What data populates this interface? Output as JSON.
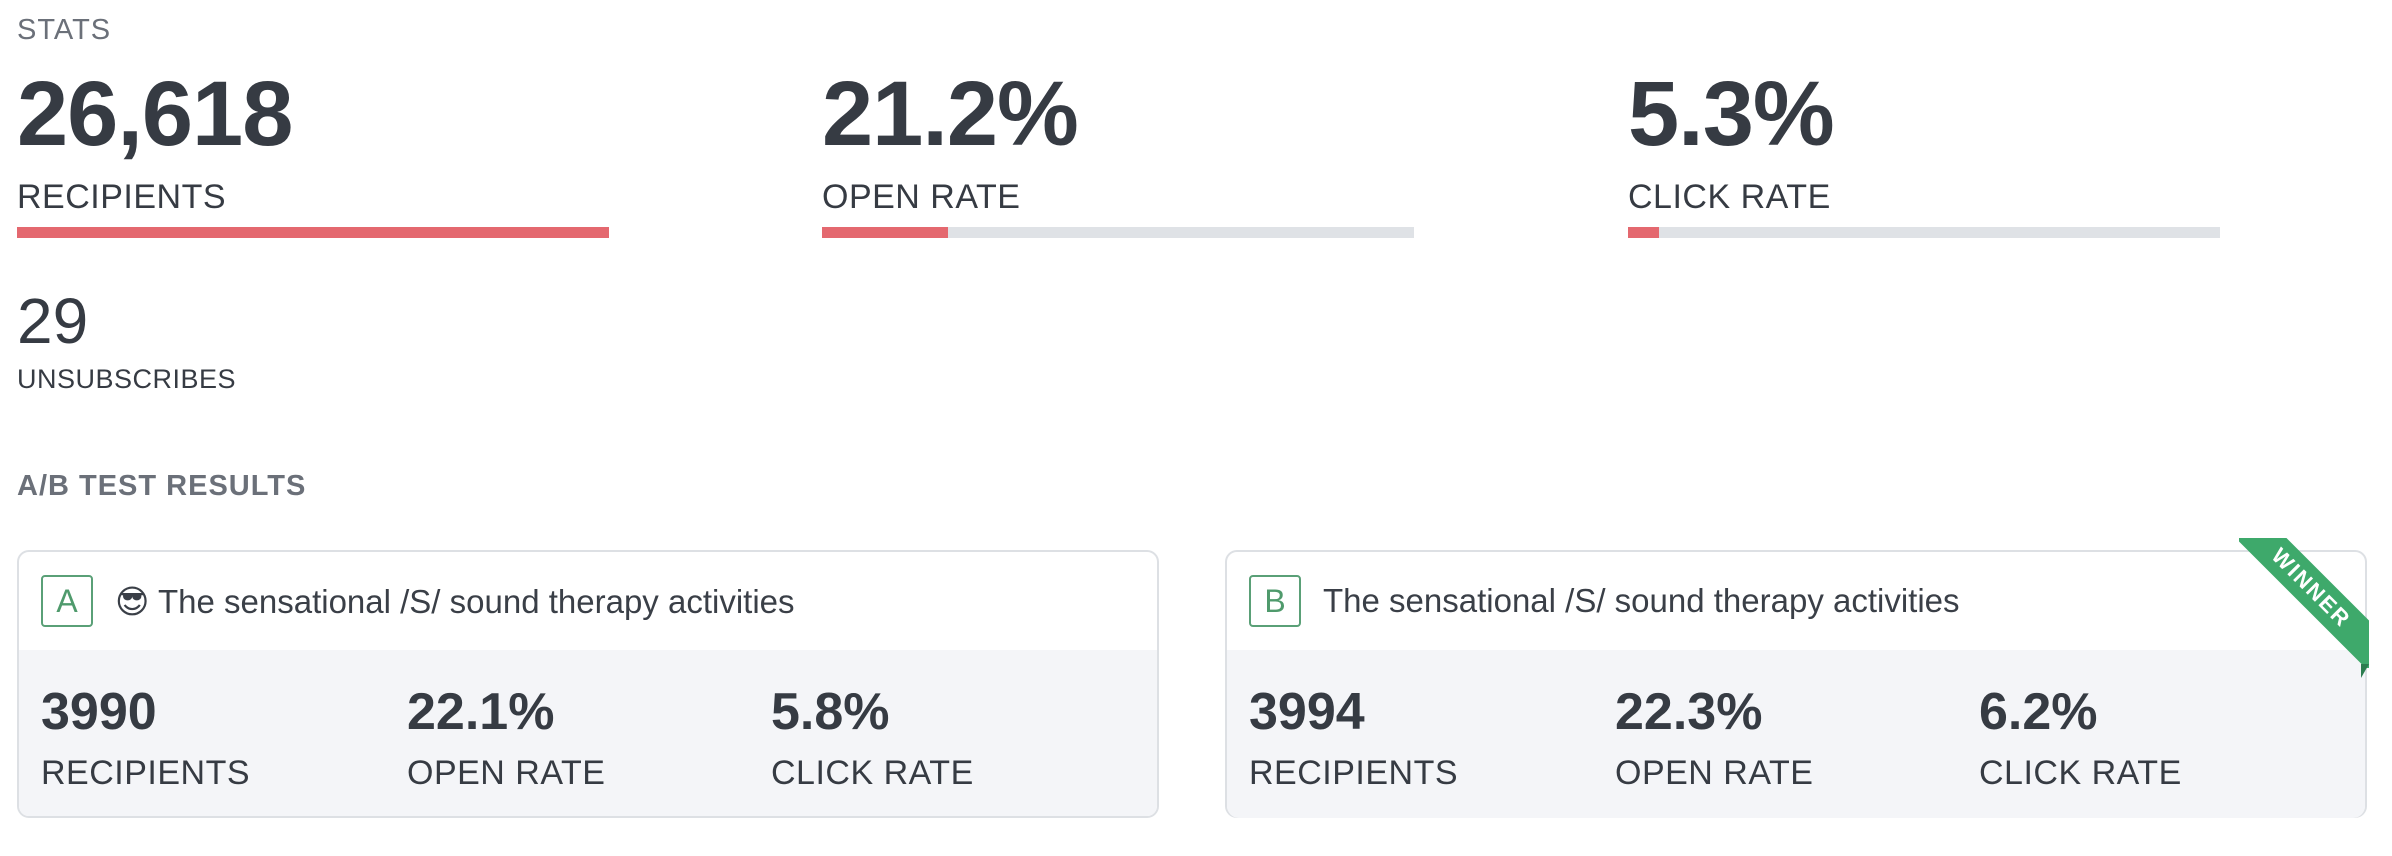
{
  "stats": {
    "title": "STATS",
    "recipients": {
      "value": "26,618",
      "label": "RECIPIENTS",
      "progress": 1.0
    },
    "open_rate": {
      "value": "21.2%",
      "label": "OPEN RATE",
      "progress": 0.212
    },
    "click_rate": {
      "value": "5.3%",
      "label": "CLICK RATE",
      "progress": 0.053
    },
    "unsubscribes": {
      "value": "29",
      "label": "UNSUBSCRIBES"
    }
  },
  "ab_test": {
    "title": "A/B TEST RESULTS",
    "variants": [
      {
        "badge": "A",
        "subject": "😎 The sensational /S/ sound therapy activities",
        "recipients": "3990",
        "recipients_label": "RECIPIENTS",
        "open_rate": "22.1%",
        "open_rate_label": "OPEN RATE",
        "click_rate": "5.8%",
        "click_rate_label": "CLICK RATE"
      },
      {
        "badge": "B",
        "subject": "The sensational /S/ sound therapy activities",
        "recipients": "3994",
        "recipients_label": "RECIPIENTS",
        "open_rate": "22.3%",
        "open_rate_label": "OPEN RATE",
        "click_rate": "6.2%",
        "click_rate_label": "CLICK RATE",
        "ribbon": "WINNER"
      }
    ]
  },
  "colors": {
    "accent": "#e4686f",
    "track": "#dfe2e6",
    "winner": "#3ea96b",
    "badge": "#5aa077"
  }
}
